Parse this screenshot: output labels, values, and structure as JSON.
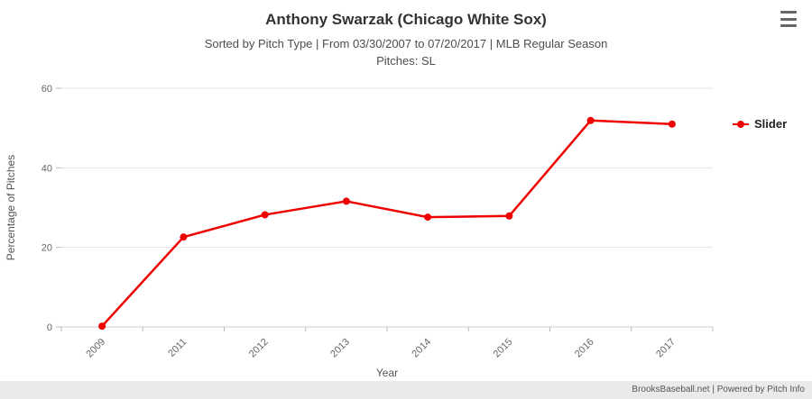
{
  "header": {
    "title": "Anthony Swarzak (Chicago White Sox)",
    "subtitle": "Sorted by Pitch Type | From 03/30/2007 to 07/20/2017 | MLB Regular Season",
    "subtitle2": "Pitches: SL"
  },
  "menu": {
    "icon": "hamburger-icon"
  },
  "legend": {
    "items": [
      {
        "label": "Slider",
        "color": "#ee0000"
      }
    ]
  },
  "footer": {
    "credit": "BrooksBaseball.net | Powered by Pitch Info"
  },
  "chart_data": {
    "type": "line",
    "title": "Anthony Swarzak (Chicago White Sox)",
    "categories": [
      "2009",
      "2011",
      "2012",
      "2013",
      "2014",
      "2015",
      "2016",
      "2017"
    ],
    "series": [
      {
        "name": "Slider",
        "color": "#ee0000",
        "values": [
          0.2,
          22.6,
          28.2,
          31.6,
          27.6,
          27.9,
          51.9,
          51.0
        ]
      }
    ],
    "xlabel": "Year",
    "ylabel": "Percentage of Pitches",
    "ylim": [
      0,
      60
    ],
    "yticks": [
      0,
      20,
      40,
      60
    ],
    "grid": true,
    "legend_position": "right"
  }
}
